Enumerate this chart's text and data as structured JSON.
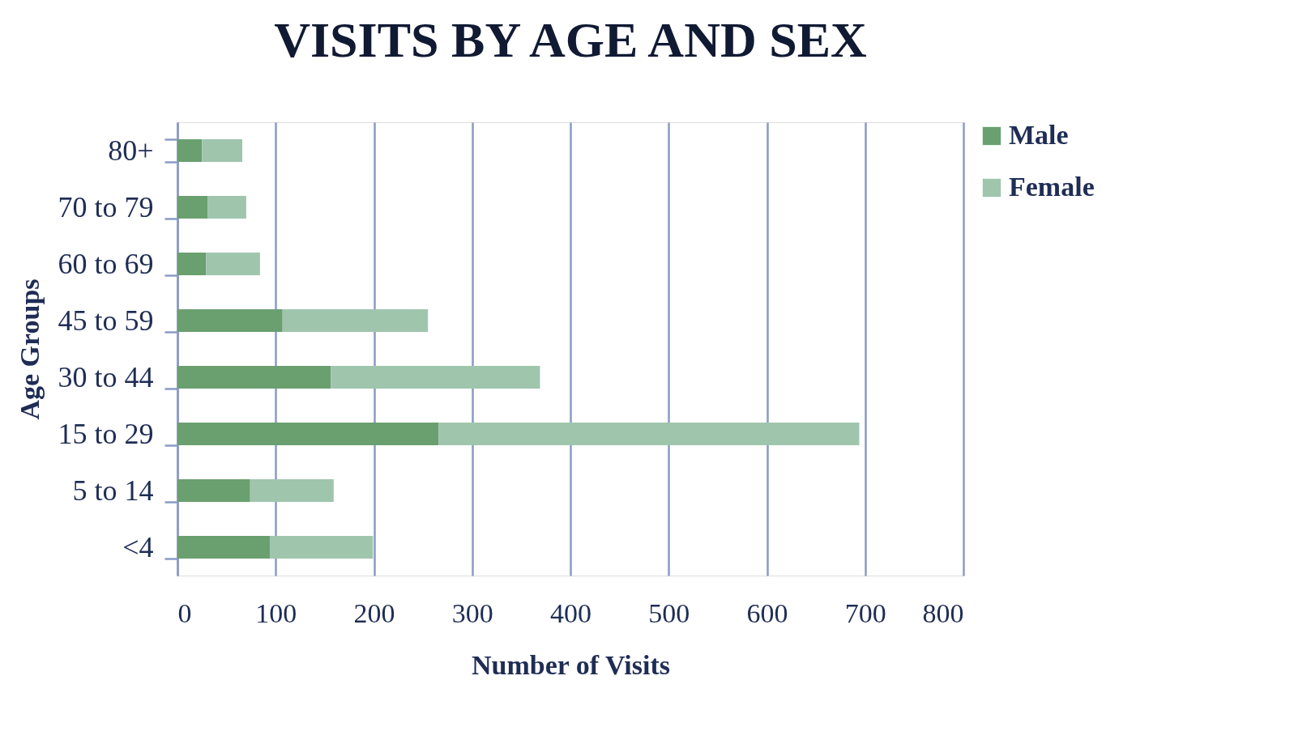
{
  "chart_data": {
    "type": "bar",
    "orientation": "horizontal",
    "stacked": true,
    "title": "VISITS BY AGE AND SEX",
    "xlabel": "Number of Visits",
    "ylabel": "Age Groups",
    "categories": [
      "80+",
      "70 to 79",
      "60 to 69",
      "45 to 59",
      "30 to 44",
      "15 to 29",
      "5 to 14",
      "<4"
    ],
    "series": [
      {
        "name": "Male",
        "color": "#6a9f70",
        "values": [
          25,
          31,
          29,
          107,
          156,
          266,
          74,
          94
        ]
      },
      {
        "name": "Female",
        "color": "#9fc5ad",
        "values": [
          41,
          39,
          55,
          148,
          213,
          428,
          85,
          105
        ]
      }
    ],
    "xlim": [
      0,
      800
    ],
    "xticks": [
      0,
      100,
      200,
      300,
      400,
      500,
      600,
      700,
      800
    ],
    "grid": "x",
    "legend": "right"
  }
}
